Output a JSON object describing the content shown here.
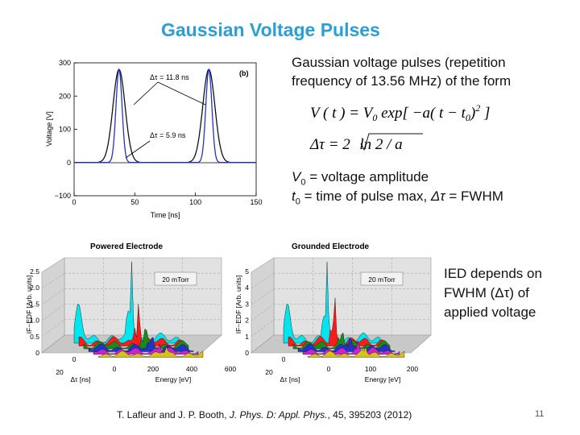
{
  "title": "Gaussian Voltage Pulses",
  "description": {
    "line1": "Gaussian voltage pulses (repetition",
    "line2": "frequency of 13.56 MHz) of the form"
  },
  "equation": {
    "line1_lhs": "V ( t ) = V",
    "line1_rhs": "exp[ −a( t − t",
    "line1_tail": ")",
    "line1_close": " ]",
    "line1_sup": "2",
    "sub0": "0",
    "line2_lhs": "Δτ = 2",
    "line2_rhs": "ln 2 / a"
  },
  "definitions": {
    "v0_label": "V",
    "v0_sub": "0",
    "v0_text": " = voltage amplitude",
    "t0_label": "t",
    "t0_sub": "0",
    "t0_text": " = time of pulse max, ",
    "fwhm_symbol": "Δτ",
    "fwhm_text": " = FWHM"
  },
  "ied_note": {
    "line1": "IED depends on",
    "line2": "FWHM (Δτ) of",
    "line3": "applied voltage"
  },
  "citation": {
    "authors": "T. Lafleur and J. P. Booth, ",
    "journal": "J. Phys. D: Appl. Phys.",
    "rest": ", 45, 395203 (2012)"
  },
  "slide_number": "11",
  "pulse_chart": {
    "panel_label": "(b)",
    "xlabel": "Time [ns]",
    "ylabel": "Voltage [V]",
    "xticks": [
      "0",
      "50",
      "100",
      "150"
    ],
    "yticks": [
      "−100",
      "0",
      "100",
      "200",
      "300"
    ],
    "annot_wide": "Δτ = 11.8 ns",
    "annot_narrow": "Δτ = 5.9 ns"
  },
  "chart_data": [
    {
      "type": "line",
      "xlabel": "Time [ns]",
      "ylabel": "Voltage [V]",
      "xlim": [
        0,
        150
      ],
      "ylim": [
        -100,
        300
      ],
      "series": [
        {
          "name": "Δτ = 11.8 ns",
          "v0": 280,
          "t0": [
            37,
            111
          ],
          "fwhm": 11.8,
          "color": "#111111"
        },
        {
          "name": "Δτ = 5.9 ns",
          "v0": 280,
          "t0": [
            37,
            111
          ],
          "fwhm": 5.9,
          "color": "#2233cc"
        }
      ]
    },
    {
      "type": "area",
      "title": "Powered Electrode",
      "xlabel": "Energy [eV]",
      "ylabel": "IF−EDF [Arb. units]",
      "depth_label": "Δτ [ns]",
      "pressure_label": "20 mTorr",
      "zticks": [
        "0",
        "0.5",
        "1.0",
        "1.5",
        "2.0",
        "2.5"
      ],
      "xticks": [
        "0",
        "200",
        "400",
        "600"
      ],
      "depth_ticks": [
        "0",
        "20"
      ]
    },
    {
      "type": "area",
      "title": "Grounded Electrode",
      "xlabel": "Energy [eV]",
      "ylabel": "IF−EDF [Arb. units]",
      "depth_label": "Δτ [ns]",
      "pressure_label": "20 mTorr",
      "zticks": [
        "0",
        "1",
        "2",
        "3",
        "4",
        "5"
      ],
      "xticks": [
        "0",
        "100",
        "200"
      ],
      "depth_ticks": [
        "0",
        "20"
      ]
    }
  ]
}
